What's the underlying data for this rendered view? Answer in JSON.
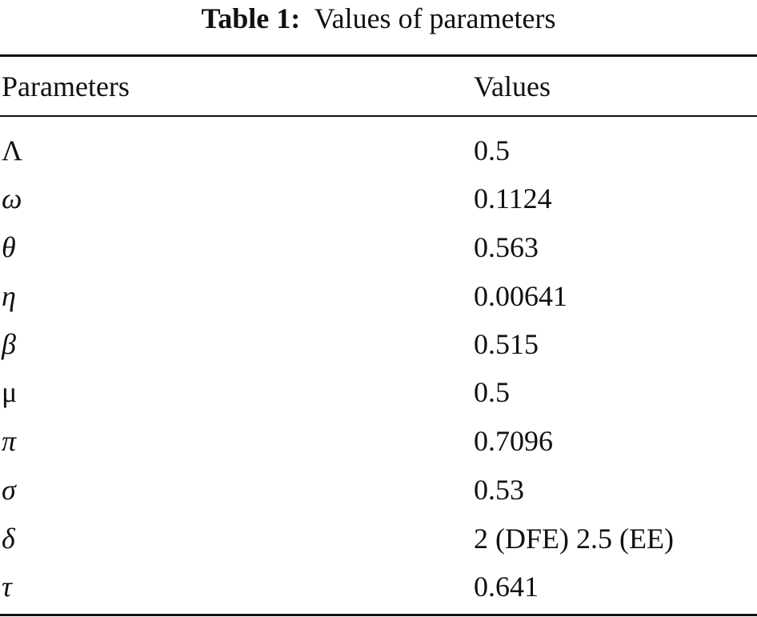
{
  "caption": {
    "label": "Table 1:",
    "text": "Values of parameters"
  },
  "table": {
    "headers": [
      "Parameters",
      "Values"
    ],
    "rows": [
      {
        "parameter": "Λ",
        "value": "0.5"
      },
      {
        "parameter": "ω",
        "value": "0.1124"
      },
      {
        "parameter": "θ",
        "value": "0.563"
      },
      {
        "parameter": "η",
        "value": "0.00641"
      },
      {
        "parameter": "β",
        "value": "0.515"
      },
      {
        "parameter": "μ",
        "value": "0.5"
      },
      {
        "parameter": "π",
        "value": "0.7096"
      },
      {
        "parameter": "σ",
        "value": "0.53"
      },
      {
        "parameter": "δ",
        "value": "2 (DFE) 2.5 (EE)"
      },
      {
        "parameter": "τ",
        "value": "0.641"
      }
    ]
  }
}
